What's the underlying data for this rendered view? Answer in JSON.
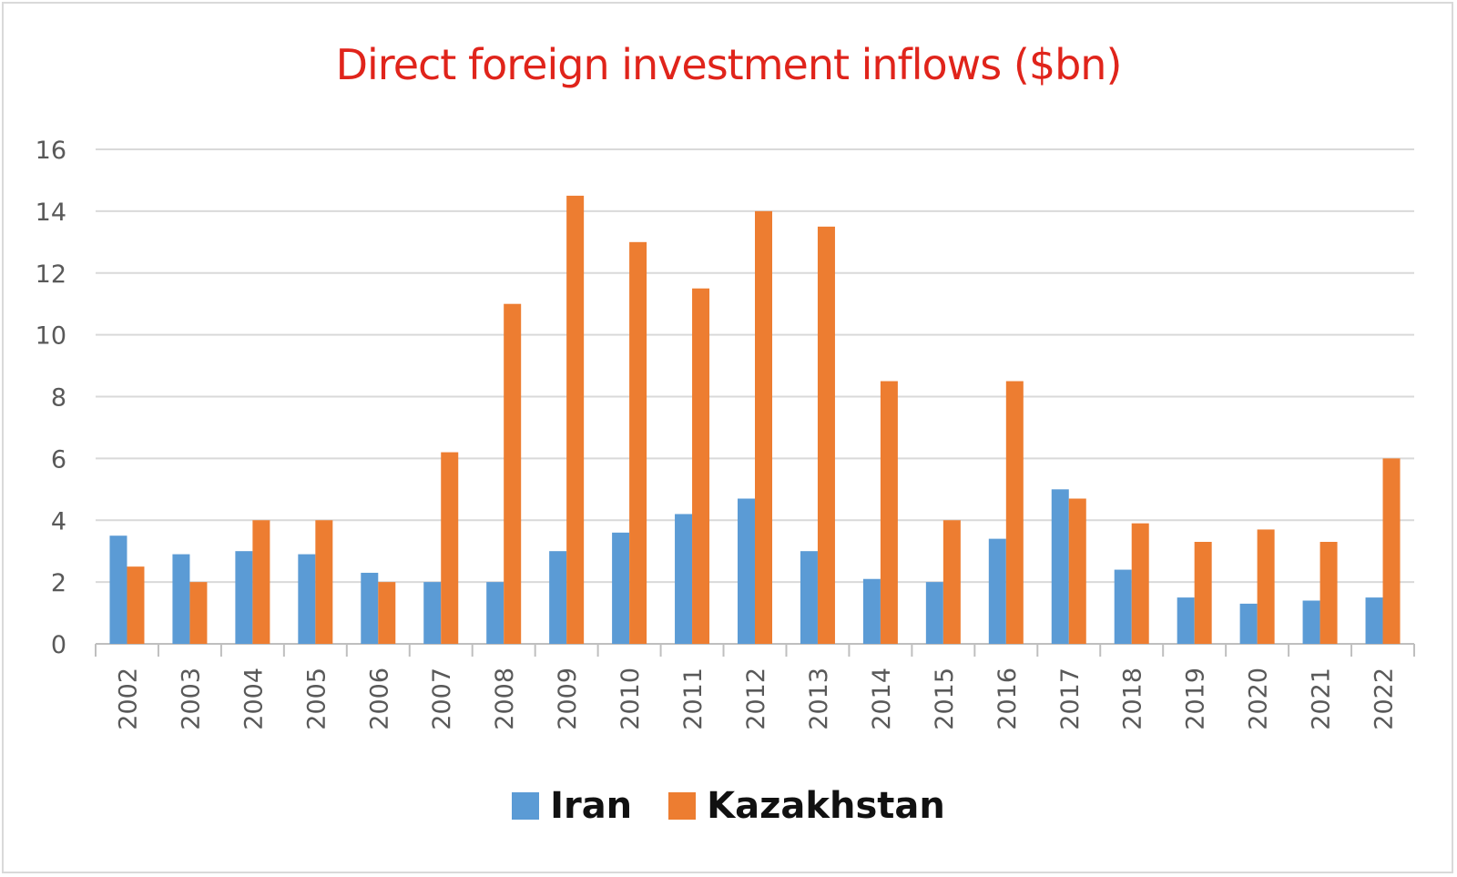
{
  "chart_data": {
    "type": "bar",
    "title": "Direct foreign investment inflows ($bn)",
    "xlabel": "",
    "ylabel": "",
    "ylim": [
      0,
      16
    ],
    "yticks": [
      0,
      2,
      4,
      6,
      8,
      10,
      12,
      14,
      16
    ],
    "grid": true,
    "legend_position": "bottom",
    "categories": [
      "2002",
      "2003",
      "2004",
      "2005",
      "2006",
      "2007",
      "2008",
      "2009",
      "2010",
      "2011",
      "2012",
      "2013",
      "2014",
      "2015",
      "2016",
      "2017",
      "2018",
      "2019",
      "2020",
      "2021",
      "2022"
    ],
    "series": [
      {
        "name": "Iran",
        "color": "#5b9bd5",
        "values": [
          3.5,
          2.9,
          3.0,
          2.9,
          2.3,
          2.0,
          2.0,
          3.0,
          3.6,
          4.2,
          4.7,
          3.0,
          2.1,
          2.0,
          3.4,
          5.0,
          2.4,
          1.5,
          1.3,
          1.4,
          1.5
        ]
      },
      {
        "name": "Kazakhstan",
        "color": "#ed7d31",
        "values": [
          2.5,
          2.0,
          4.0,
          4.0,
          2.0,
          6.2,
          11.0,
          14.5,
          13.0,
          11.5,
          14.0,
          13.5,
          8.5,
          4.0,
          8.5,
          4.7,
          3.9,
          3.3,
          3.7,
          3.3,
          6.0
        ]
      }
    ]
  }
}
